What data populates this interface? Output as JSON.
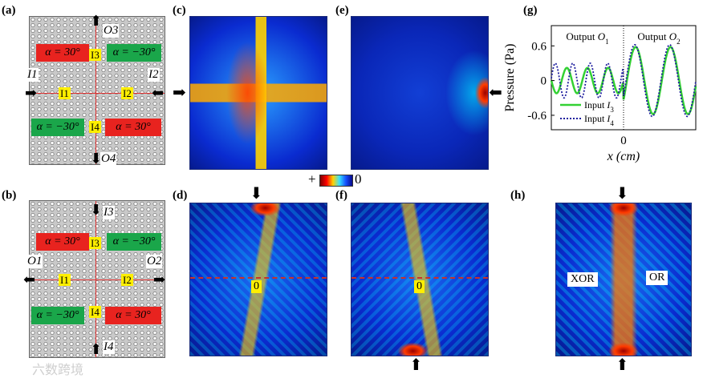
{
  "panel_labels": {
    "a": "(a)",
    "b": "(b)",
    "c": "(c)",
    "d": "(d)",
    "e": "(e)",
    "f": "(f)",
    "g": "(g)",
    "h": "(h)"
  },
  "structure_a": {
    "region_tl": "α = 30°",
    "region_tr": "α = −30°",
    "region_bl": "α = −30°",
    "region_br": "α = 30°",
    "i1": "I1",
    "i2": "I2",
    "i3": "I3",
    "i4": "I4",
    "port_top": "O3",
    "port_bottom": "O4",
    "port_left": "I1",
    "port_right": "I2"
  },
  "structure_b": {
    "region_tl": "α = 30°",
    "region_tr": "α = −30°",
    "region_bl": "α = −30°",
    "region_br": "α = 30°",
    "i1": "I1",
    "i2": "I2",
    "i3": "I3",
    "i4": "I4",
    "port_top": "I3",
    "port_bottom": "I4",
    "port_left": "O1",
    "port_right": "O2"
  },
  "colorbar": {
    "left": "+",
    "right": "0"
  },
  "field_labels": {
    "d_zero": "0",
    "f_zero": "0",
    "h_left": "XOR",
    "h_right": "OR"
  },
  "watermark": "六数跨境",
  "chart_data": {
    "type": "line",
    "xlabel": "x (cm)",
    "ylabel": "Pressure (Pa)",
    "yticks": [
      "0.6",
      "0",
      "-0.6"
    ],
    "xticks": [
      "0"
    ],
    "ylim": [
      -0.85,
      0.95
    ],
    "xlim": [
      -1,
      1
    ],
    "region_labels": [
      "Output O1",
      "Output O2"
    ],
    "series": [
      {
        "name": "Input I3",
        "style": "solid",
        "color": "#33d133",
        "amp_left": 0.22,
        "amp_right": 0.58
      },
      {
        "name": "Input I4",
        "style": "dotted",
        "color": "#1f1f9e",
        "amp_left": 0.3,
        "amp_right": 0.62
      }
    ]
  }
}
